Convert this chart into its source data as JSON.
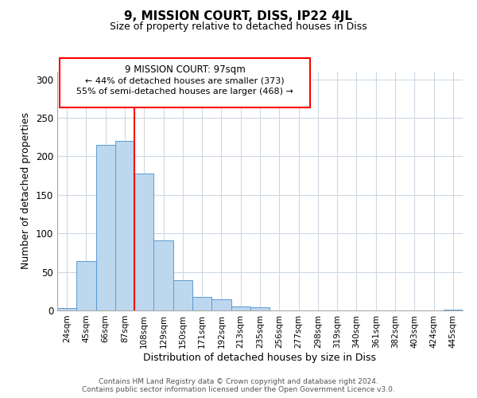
{
  "title": "9, MISSION COURT, DISS, IP22 4JL",
  "subtitle": "Size of property relative to detached houses in Diss",
  "xlabel": "Distribution of detached houses by size in Diss",
  "ylabel": "Number of detached properties",
  "bar_color": "#bdd7ee",
  "bar_edge_color": "#5b9bd5",
  "categories": [
    "24sqm",
    "45sqm",
    "66sqm",
    "87sqm",
    "108sqm",
    "129sqm",
    "150sqm",
    "171sqm",
    "192sqm",
    "213sqm",
    "235sqm",
    "256sqm",
    "277sqm",
    "298sqm",
    "319sqm",
    "340sqm",
    "361sqm",
    "382sqm",
    "403sqm",
    "424sqm",
    "445sqm"
  ],
  "values": [
    3,
    64,
    215,
    220,
    178,
    91,
    39,
    18,
    14,
    5,
    4,
    0,
    0,
    0,
    0,
    0,
    0,
    0,
    0,
    0,
    1
  ],
  "redline_x": 3.5,
  "ylim": [
    0,
    310
  ],
  "annotation_title": "9 MISSION COURT: 97sqm",
  "annotation_line1": "← 44% of detached houses are smaller (373)",
  "annotation_line2": "55% of semi-detached houses are larger (468) →",
  "footer_line1": "Contains HM Land Registry data © Crown copyright and database right 2024.",
  "footer_line2": "Contains public sector information licensed under the Open Government Licence v3.0.",
  "background_color": "#ffffff",
  "grid_color": "#cdd8e3"
}
